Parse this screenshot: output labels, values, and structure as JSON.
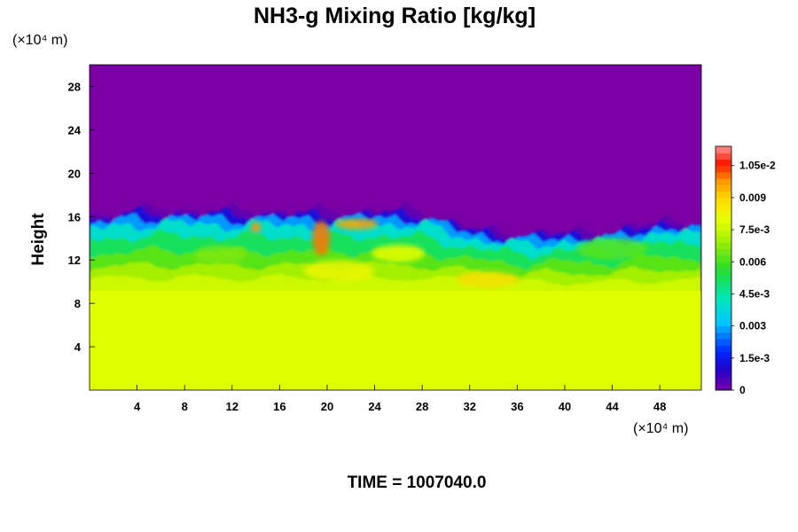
{
  "chart_data": {
    "type": "heatmap",
    "title": "NH3-g Mixing Ratio [kg/kg]",
    "ylabel": "Height",
    "xlabel": "",
    "x_unit": "(×10⁴ m)",
    "y_unit": "(×10⁴ m)",
    "xlim": [
      0,
      51.5
    ],
    "ylim": [
      0,
      30
    ],
    "x_ticks": [
      {
        "value": 4,
        "label": "4"
      },
      {
        "value": 8,
        "label": "8"
      },
      {
        "value": 12,
        "label": "12"
      },
      {
        "value": 16,
        "label": "16"
      },
      {
        "value": 20,
        "label": "20"
      },
      {
        "value": 24,
        "label": "24"
      },
      {
        "value": 28,
        "label": "28"
      },
      {
        "value": 32,
        "label": "32"
      },
      {
        "value": 36,
        "label": "36"
      },
      {
        "value": 40,
        "label": "40"
      },
      {
        "value": 44,
        "label": "44"
      },
      {
        "value": 48,
        "label": "48"
      }
    ],
    "y_ticks": [
      {
        "value": 4,
        "label": "4"
      },
      {
        "value": 8,
        "label": "8"
      },
      {
        "value": 12,
        "label": "12"
      },
      {
        "value": 16,
        "label": "16"
      },
      {
        "value": 20,
        "label": "20"
      },
      {
        "value": 24,
        "label": "24"
      },
      {
        "value": 28,
        "label": "28"
      }
    ],
    "colorbar": {
      "min": 0,
      "max": 0.0114,
      "ticks": [
        {
          "value": 0,
          "label": "0"
        },
        {
          "value": 0.0015,
          "label": "1.5e-3"
        },
        {
          "value": 0.003,
          "label": "0.003"
        },
        {
          "value": 0.0045,
          "label": "4.5e-3"
        },
        {
          "value": 0.006,
          "label": "0.006"
        },
        {
          "value": 0.0075,
          "label": "7.5e-3"
        },
        {
          "value": 0.009,
          "label": "0.009"
        },
        {
          "value": 0.0105,
          "label": "1.05e-2"
        }
      ]
    },
    "field_description": {
      "upper_layer_value": 0.0,
      "lower_layer_value": 0.0079,
      "lower_layer_top_height": 8.8,
      "mixing_layer_top_height": [
        [
          0,
          16.0
        ],
        [
          4,
          16.5
        ],
        [
          8,
          16.6
        ],
        [
          12,
          16.4
        ],
        [
          16,
          16.5
        ],
        [
          20,
          16.3
        ],
        [
          24,
          16.6
        ],
        [
          28,
          16.4
        ],
        [
          32,
          15.0
        ],
        [
          36,
          14.2
        ],
        [
          40,
          14.6
        ],
        [
          44,
          14.4
        ],
        [
          48,
          15.6
        ],
        [
          51.5,
          15.3
        ]
      ]
    }
  },
  "time_label": "TIME = 1007040.0"
}
